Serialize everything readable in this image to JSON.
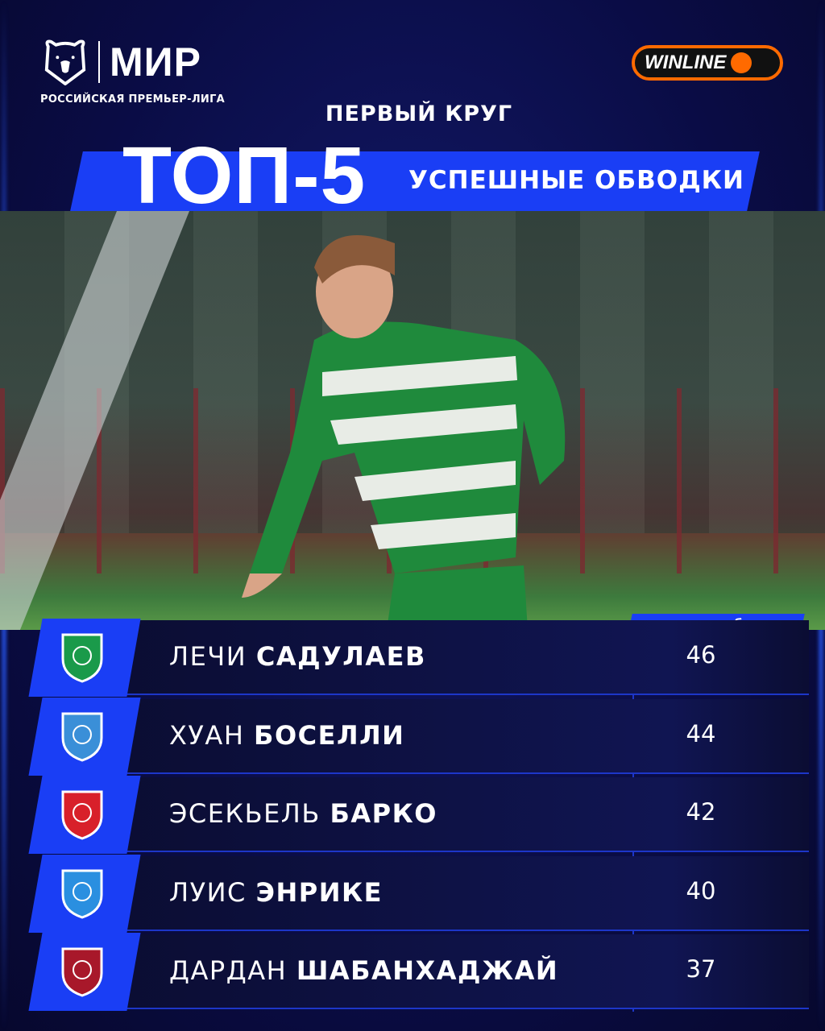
{
  "header": {
    "league_logo_text": "МИР",
    "league_name": "РОССИЙСКАЯ ПРЕМЬЕР-ЛИГА",
    "sponsor": "WINLINE",
    "round": "ПЕРВЫЙ КРУГ",
    "title": "ТОП-5",
    "subtitle": "УСПЕШНЫЕ ОБВОДКИ"
  },
  "table": {
    "column_header": "успешных обводок",
    "rows": [
      {
        "first": "ЛЕЧИ",
        "last": "САДУЛАЕВ",
        "value": "46",
        "club_icon": "akhmat-crest",
        "color": "#1a9a4a"
      },
      {
        "first": "ХУАН",
        "last": "БОСЕЛЛИ",
        "value": "44",
        "club_icon": "pari-nn-crest",
        "color": "#3a8fd8"
      },
      {
        "first": "ЭСЕКЬЕЛЬ",
        "last": "БАРКО",
        "value": "42",
        "club_icon": "spartak-crest",
        "color": "#d8202a"
      },
      {
        "first": "ЛУИС",
        "last": "ЭНРИКЕ",
        "value": "40",
        "club_icon": "zenit-crest",
        "color": "#2a8fe0"
      },
      {
        "first": "ДАРДАН",
        "last": "ШАБАНХАДЖАЙ",
        "value": "37",
        "club_icon": "rubin-crest",
        "color": "#a8182a"
      }
    ]
  },
  "colors": {
    "accent": "#1a3ef5",
    "background": "#0a0c45",
    "sponsor": "#ff6a00"
  }
}
